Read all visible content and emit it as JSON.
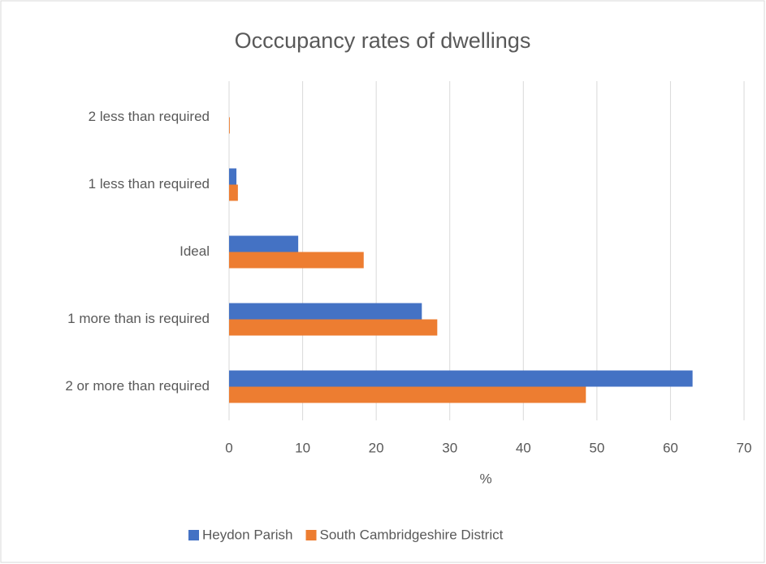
{
  "chart_data": {
    "type": "hbar",
    "title": "Occcupancy rates of dwellings",
    "x_label": "%",
    "categories": [
      "2 less than required",
      "1 less than required",
      "Ideal",
      "1 more than is required",
      "2 or more than required"
    ],
    "series": [
      {
        "name": "Heydon Parish",
        "color": "#4472c4",
        "values": [
          0,
          1.0,
          9.4,
          26.2,
          63.0
        ]
      },
      {
        "name": "South Cambridgeshire District",
        "color": "#ed7d31",
        "values": [
          0.1,
          1.2,
          18.3,
          28.3,
          48.5
        ]
      }
    ],
    "xlim": [
      0,
      70
    ],
    "xticks": [
      0,
      10,
      20,
      30,
      40,
      50,
      60,
      70
    ],
    "grid": true,
    "legend": "bottom"
  }
}
